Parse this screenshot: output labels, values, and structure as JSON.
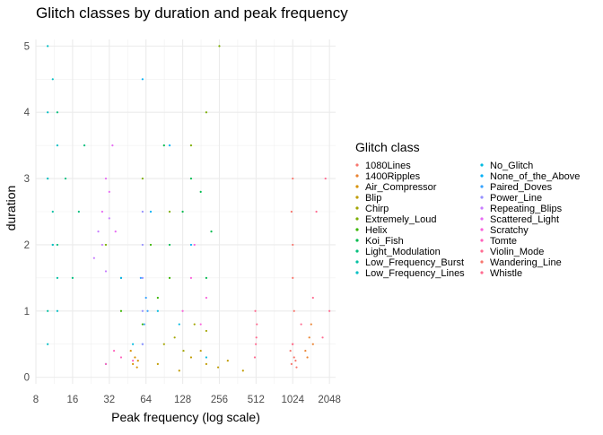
{
  "chart_data": {
    "type": "scatter",
    "title": "Glitch classes by duration and peak frequency",
    "xlabel": "Peak frequency (log scale)",
    "ylabel": "duration",
    "x_scale": "log2",
    "xlim": [
      8,
      2300
    ],
    "ylim": [
      -0.1,
      5.1
    ],
    "x_ticks": [
      8,
      16,
      32,
      64,
      128,
      256,
      512,
      1024,
      2048
    ],
    "y_ticks": [
      0,
      1,
      2,
      3,
      4,
      5
    ],
    "grid": true,
    "legend": {
      "title": "Glitch class",
      "placement": "right",
      "columns": 2
    },
    "series": [
      {
        "name": "1080Lines",
        "color": "#F8766D",
        "points": [
          [
            1000,
            0.2
          ],
          [
            1050,
            0.3
          ],
          [
            1100,
            0.15
          ],
          [
            980,
            0.4
          ],
          [
            1020,
            0.5
          ],
          [
            1080,
            0.25
          ]
        ]
      },
      {
        "name": "1400Ripples",
        "color": "#EA8331",
        "points": [
          [
            1300,
            0.4
          ],
          [
            1400,
            0.6
          ],
          [
            1350,
            0.3
          ],
          [
            1450,
            0.8
          ],
          [
            1500,
            0.5
          ]
        ]
      },
      {
        "name": "Air_Compressor",
        "color": "#D89000",
        "points": [
          [
            50,
            0.2
          ],
          [
            52,
            0.3
          ],
          [
            55,
            0.25
          ],
          [
            48,
            0.4
          ],
          [
            54,
            0.15
          ]
        ]
      },
      {
        "name": "Blip",
        "color": "#C09B00",
        "points": [
          [
            80,
            0.2
          ],
          [
            120,
            0.1
          ],
          [
            150,
            0.3
          ],
          [
            200,
            0.2
          ],
          [
            250,
            0.15
          ],
          [
            300,
            0.25
          ],
          [
            180,
            0.4
          ],
          [
            400,
            0.1
          ]
        ]
      },
      {
        "name": "Chirp",
        "color": "#A3A500",
        "points": [
          [
            90,
            0.5
          ],
          [
            110,
            0.6
          ],
          [
            130,
            0.4
          ],
          [
            160,
            0.8
          ],
          [
            200,
            0.7
          ]
        ]
      },
      {
        "name": "Extremely_Loud",
        "color": "#7CAE00",
        "points": [
          [
            30,
            2.0
          ],
          [
            60,
            3.0
          ],
          [
            100,
            2.5
          ],
          [
            200,
            4.0
          ],
          [
            256,
            5.0
          ],
          [
            40,
            1.5
          ],
          [
            150,
            3.5
          ]
        ]
      },
      {
        "name": "Helix",
        "color": "#39B600",
        "points": [
          [
            40,
            1.0
          ],
          [
            60,
            0.8
          ],
          [
            80,
            1.2
          ],
          [
            100,
            1.5
          ],
          [
            70,
            2.0
          ]
        ]
      },
      {
        "name": "Koi_Fish",
        "color": "#00BB4E",
        "points": [
          [
            100,
            2.0
          ],
          [
            128,
            2.5
          ],
          [
            150,
            3.0
          ],
          [
            200,
            1.5
          ],
          [
            90,
            3.5
          ],
          [
            180,
            2.8
          ],
          [
            220,
            2.2
          ]
        ]
      },
      {
        "name": "Light_Modulation",
        "color": "#00BF7D",
        "points": [
          [
            12,
            2.0
          ],
          [
            14,
            3.0
          ],
          [
            16,
            1.5
          ],
          [
            18,
            2.5
          ],
          [
            12,
            4.0
          ],
          [
            20,
            3.5
          ]
        ]
      },
      {
        "name": "Low_Frequency_Burst",
        "color": "#00C1A3",
        "points": [
          [
            10,
            1.0
          ],
          [
            11,
            2.0
          ],
          [
            12,
            1.5
          ],
          [
            10,
            3.0
          ],
          [
            11,
            2.5
          ]
        ]
      },
      {
        "name": "Low_Frequency_Lines",
        "color": "#00BFC4",
        "points": [
          [
            10,
            5.0
          ],
          [
            11,
            4.5
          ],
          [
            10,
            4.0
          ],
          [
            12,
            3.5
          ],
          [
            10,
            3.0
          ],
          [
            11,
            2.0
          ],
          [
            12,
            1.0
          ],
          [
            10,
            0.5
          ]
        ]
      },
      {
        "name": "No_Glitch",
        "color": "#00BAE0",
        "points": [
          [
            30,
            0.2
          ],
          [
            50,
            0.5
          ],
          [
            80,
            1.0
          ],
          [
            120,
            0.8
          ],
          [
            200,
            0.3
          ]
        ]
      },
      {
        "name": "None_of_the_Above",
        "color": "#00B0F6",
        "points": [
          [
            40,
            1.5
          ],
          [
            70,
            2.5
          ],
          [
            100,
            3.5
          ],
          [
            150,
            2.0
          ],
          [
            60,
            4.5
          ]
        ]
      },
      {
        "name": "Paired_Doves",
        "color": "#35A2FF",
        "points": [
          [
            60,
            0.5
          ],
          [
            62,
            0.8
          ],
          [
            64,
            1.2
          ],
          [
            58,
            1.5
          ],
          [
            66,
            1.0
          ]
        ]
      },
      {
        "name": "Power_Line",
        "color": "#9590FF",
        "points": [
          [
            60,
            1.0
          ],
          [
            60,
            2.0
          ],
          [
            60,
            1.5
          ],
          [
            60,
            0.5
          ],
          [
            60,
            2.5
          ]
        ]
      },
      {
        "name": "Repeating_Blips",
        "color": "#C77CFF",
        "points": [
          [
            24,
            1.8
          ],
          [
            26,
            2.2
          ],
          [
            28,
            2.0
          ],
          [
            30,
            1.6
          ],
          [
            32,
            2.4
          ]
        ]
      },
      {
        "name": "Scattered_Light",
        "color": "#E76BF3",
        "points": [
          [
            28,
            2.5
          ],
          [
            30,
            3.0
          ],
          [
            32,
            2.8
          ],
          [
            34,
            3.5
          ],
          [
            36,
            2.2
          ]
        ]
      },
      {
        "name": "Scratchy",
        "color": "#FA62DB",
        "points": [
          [
            128,
            1.0
          ],
          [
            150,
            1.5
          ],
          [
            180,
            0.8
          ],
          [
            200,
            1.2
          ],
          [
            160,
            2.0
          ]
        ]
      },
      {
        "name": "Tomte",
        "color": "#FF62BC",
        "points": [
          [
            30,
            0.2
          ],
          [
            40,
            0.3
          ],
          [
            50,
            0.25
          ],
          [
            35,
            0.4
          ]
        ]
      },
      {
        "name": "Violin_Mode",
        "color": "#FF6C91",
        "points": [
          [
            500,
            0.3
          ],
          [
            510,
            0.5
          ],
          [
            520,
            0.8
          ],
          [
            505,
            1.0
          ],
          [
            515,
            0.6
          ]
        ]
      },
      {
        "name": "Wandering_Line",
        "color": "#F8766D",
        "points": [
          [
            1024,
            2.0
          ],
          [
            1024,
            1.5
          ],
          [
            1000,
            2.5
          ],
          [
            1050,
            1.0
          ],
          [
            1024,
            3.0
          ]
        ]
      },
      {
        "name": "Whistle",
        "color": "#FF6C91",
        "points": [
          [
            1024,
            0.5
          ],
          [
            1200,
            0.8
          ],
          [
            1500,
            1.2
          ],
          [
            1800,
            0.6
          ],
          [
            2048,
            1.0
          ],
          [
            1600,
            2.5
          ],
          [
            1900,
            3.0
          ]
        ]
      }
    ]
  }
}
